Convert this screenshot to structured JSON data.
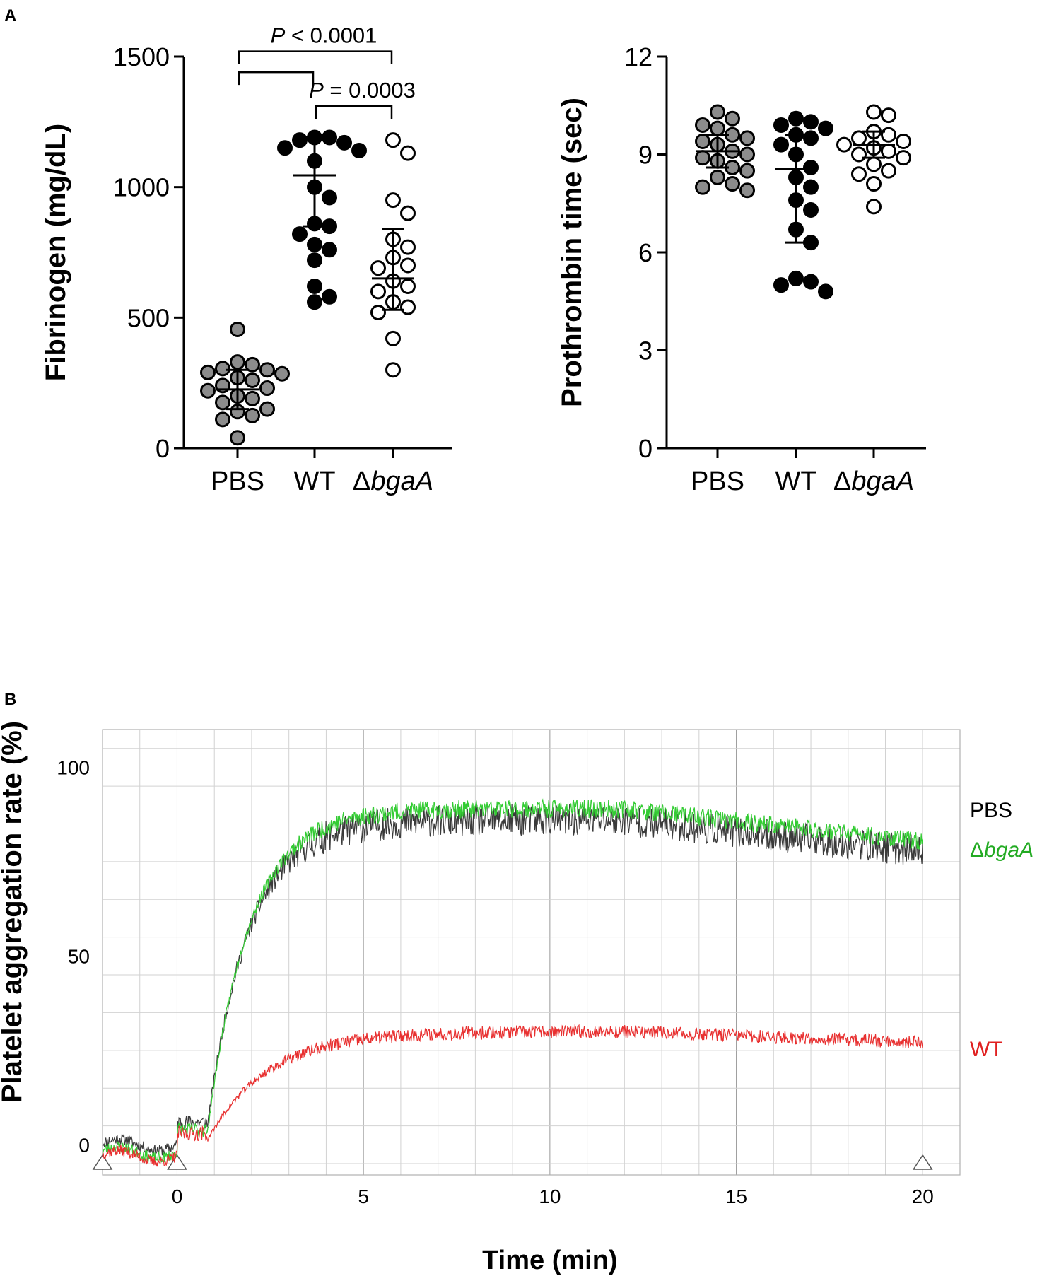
{
  "panel_a_label": "A",
  "panel_b_label": "B",
  "chart_data": [
    {
      "type": "scatter",
      "title": "",
      "ylabel": "Fibrinogen (mg/dL)",
      "ylim": [
        0,
        1500
      ],
      "yticks": [
        "0",
        "500",
        "1000",
        "1500"
      ],
      "groups": [
        {
          "name": "PBS",
          "prefix": "",
          "italic": "",
          "fill": "#8c8c8c",
          "stroke": "#000000",
          "mean": 225,
          "sd_low": 150,
          "sd_high": 300,
          "values": [
            455,
            330,
            320,
            305,
            300,
            290,
            285,
            270,
            260,
            240,
            230,
            220,
            200,
            190,
            175,
            150,
            140,
            125,
            110,
            40
          ]
        },
        {
          "name": "WT",
          "prefix": "",
          "italic": "",
          "fill": "#000000",
          "stroke": "#000000",
          "mean": 1045,
          "sd_low": 850,
          "sd_high": 1190,
          "values": [
            1190,
            1190,
            1180,
            1170,
            1150,
            1140,
            1100,
            1000,
            960,
            860,
            850,
            820,
            780,
            760,
            720,
            620,
            580,
            560
          ]
        },
        {
          "name": "ΔbgaA",
          "prefix": "Δ",
          "italic": "bgaA",
          "fill": "#ffffff",
          "stroke": "#000000",
          "mean": 650,
          "sd_low": 530,
          "sd_high": 840,
          "values": [
            1180,
            1130,
            950,
            900,
            800,
            770,
            730,
            700,
            690,
            640,
            620,
            600,
            560,
            540,
            520,
            420,
            300
          ]
        }
      ],
      "annotations": [
        {
          "text_italic": "P",
          "text_rest": " < 0.0001",
          "from": "PBS",
          "to": "ΔbgaA",
          "level": 1520
        },
        {
          "text_italic": "",
          "text_rest": "",
          "from": "PBS",
          "to": "WT",
          "level": 1440
        },
        {
          "text_italic": "P",
          "text_rest": " = 0.0003",
          "from": "WT",
          "to": "ΔbgaA",
          "level": 1310
        }
      ]
    },
    {
      "type": "scatter",
      "title": "",
      "ylabel": "Prothrombin time (sec)",
      "ylim": [
        0,
        12
      ],
      "yticks": [
        "0",
        "3",
        "6",
        "9",
        "12"
      ],
      "groups": [
        {
          "name": "PBS",
          "prefix": "",
          "italic": "",
          "fill": "#8c8c8c",
          "stroke": "#000000",
          "mean": 9.1,
          "sd_low": 8.6,
          "sd_high": 9.6,
          "values": [
            10.3,
            10.1,
            9.9,
            9.8,
            9.6,
            9.5,
            9.4,
            9.3,
            9.1,
            9.0,
            8.9,
            8.8,
            8.6,
            8.5,
            8.3,
            8.1,
            8.0,
            7.9
          ]
        },
        {
          "name": "WT",
          "prefix": "",
          "italic": "",
          "fill": "#000000",
          "stroke": "#000000",
          "mean": 8.55,
          "sd_low": 6.3,
          "sd_high": 9.6,
          "values": [
            10.1,
            10.0,
            9.9,
            9.8,
            9.6,
            9.5,
            9.3,
            9.0,
            8.6,
            8.3,
            8.0,
            7.6,
            7.3,
            6.7,
            6.3,
            5.2,
            5.1,
            5.0,
            4.8
          ]
        },
        {
          "name": "ΔbgaA",
          "prefix": "Δ",
          "italic": "bgaA",
          "fill": "#ffffff",
          "stroke": "#000000",
          "mean": 9.3,
          "sd_low": 8.9,
          "sd_high": 9.7,
          "values": [
            10.3,
            10.2,
            9.7,
            9.6,
            9.5,
            9.4,
            9.3,
            9.2,
            9.1,
            9.0,
            8.9,
            8.7,
            8.5,
            8.4,
            8.1,
            7.4
          ]
        }
      ],
      "annotations": []
    },
    {
      "type": "line",
      "title": "",
      "xlabel": "Time (min)",
      "ylabel": "Platelet aggregation rate (%)",
      "xlim": [
        -2,
        21
      ],
      "ylim": [
        -8,
        110
      ],
      "xticks": [
        "0",
        "5",
        "10",
        "15",
        "20"
      ],
      "yticks": [
        "0",
        "50",
        "100"
      ],
      "markers_x": [
        -2,
        0,
        20
      ],
      "series": [
        {
          "name": "PBS",
          "prefix": "",
          "italic": "",
          "color": "#3a3a3a",
          "baseline": 0,
          "plateau": 86,
          "tau": 1.1,
          "noise": 6,
          "seed": 11
        },
        {
          "name": "ΔbgaA",
          "prefix": "Δ",
          "italic": "bgaA",
          "color": "#33cc33",
          "baseline": -2,
          "plateau": 89,
          "tau": 1.1,
          "noise": 3.5,
          "seed": 23
        },
        {
          "name": "WT",
          "prefix": "",
          "italic": "",
          "color": "#e83030",
          "baseline": -3,
          "plateau": 30,
          "tau": 1.6,
          "noise": 2.5,
          "seed": 37
        }
      ]
    }
  ]
}
